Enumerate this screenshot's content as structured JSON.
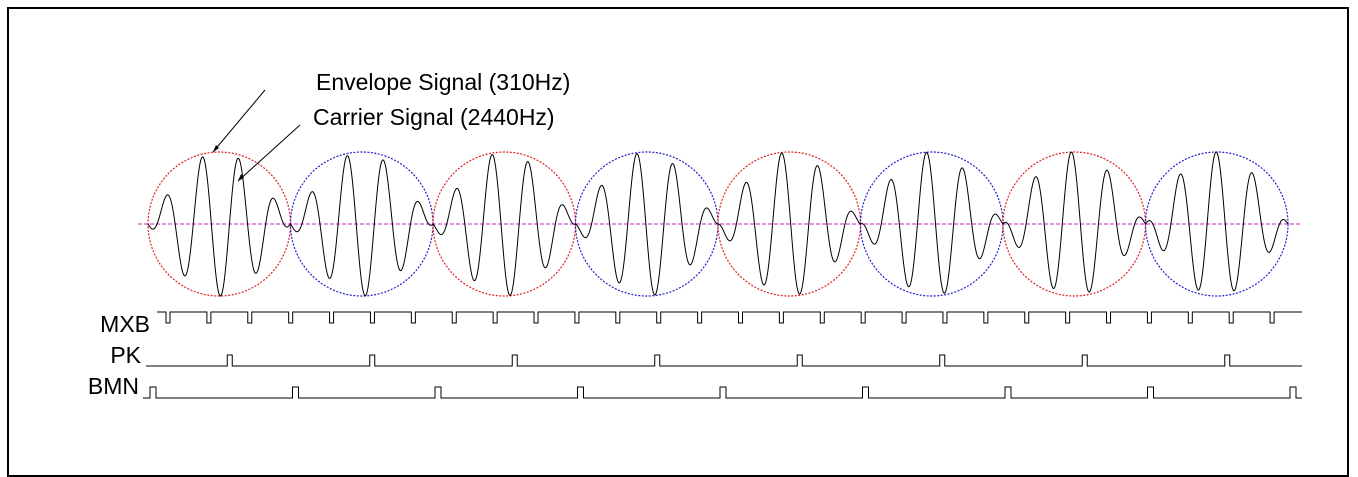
{
  "annotations": {
    "envelope": "Envelope Signal (310Hz)",
    "carrier": "Carrier Signal (2440Hz)"
  },
  "envelope_frequency_hz": 310,
  "carrier_frequency_hz": 2440,
  "envelope_lobes": 8,
  "lobe_colors": [
    "#e02020",
    "#2020d0"
  ],
  "axis_color": "#d020d0",
  "signals": [
    {
      "name": "MXB",
      "pulses_per_lobe": 3
    },
    {
      "name": "PK",
      "pulses_per_lobe": 1
    },
    {
      "name": "BMN",
      "pulses_per_lobe": 1
    }
  ]
}
